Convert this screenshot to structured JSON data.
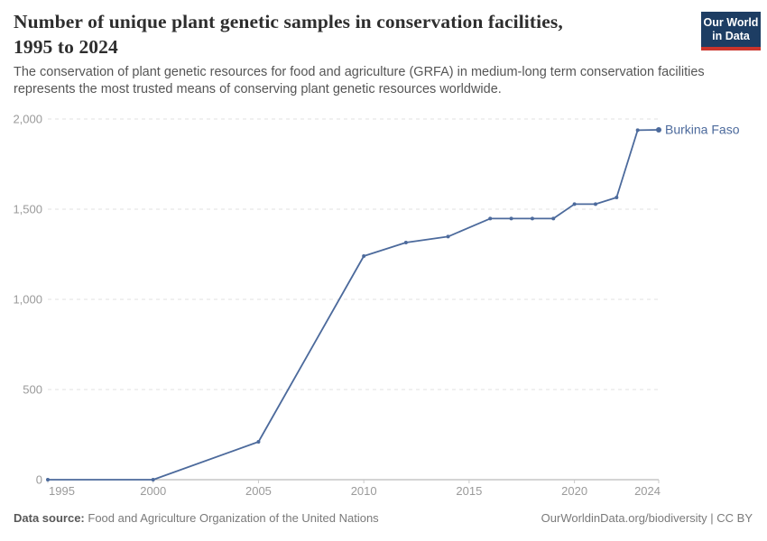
{
  "header": {
    "title_line1": "Number of unique plant genetic samples in conservation facilities,",
    "title_line2": "1995 to 2024",
    "subtitle_line1": "The conservation of plant genetic resources for food and agriculture (GRFA) in medium-long term conservation facilities",
    "subtitle_line2": "represents the most trusted means of conserving plant genetic resources worldwide.",
    "logo": {
      "line1": "Our World",
      "line2": "in Data",
      "bg_color": "#1d3d63",
      "accent_color": "#cb342b"
    }
  },
  "chart_data": {
    "type": "line",
    "title": "Number of unique plant genetic samples in conservation facilities, 1995 to 2024",
    "xlabel": "",
    "ylabel": "",
    "xlim": [
      1995,
      2024
    ],
    "ylim": [
      0,
      2000
    ],
    "x_ticks": [
      1995,
      2000,
      2005,
      2010,
      2015,
      2020,
      2024
    ],
    "y_ticks": [
      0,
      500,
      1000,
      1500,
      2000
    ],
    "grid": "horizontal-dashed",
    "legend_position": "end-of-line-label",
    "series": [
      {
        "name": "Burkina Faso",
        "color": "#4c6a9c",
        "x": [
          1995,
          2000,
          2005,
          2010,
          2012,
          2014,
          2016,
          2017,
          2018,
          2019,
          2020,
          2021,
          2022,
          2023,
          2024
        ],
        "values": [
          0,
          0,
          210,
          1240,
          1315,
          1348,
          1448,
          1448,
          1448,
          1448,
          1528,
          1528,
          1565,
          1938,
          1940
        ]
      }
    ]
  },
  "footer": {
    "source_label": "Data source:",
    "source_text": "Food and Agriculture Organization of the United Nations",
    "attribution": "OurWorldinData.org/biodiversity | CC BY"
  },
  "colors": {
    "line": "#4c6a9c",
    "title_text": "#2e2e2e",
    "subtitle_text": "#555555",
    "axis_text": "#9a9a9a",
    "gridline": "#e0e0e0",
    "axis_line": "#a9a9a9",
    "footer_text": "#7a7a7a",
    "logo_bg": "#1d3d63",
    "logo_accent": "#cb342b"
  }
}
